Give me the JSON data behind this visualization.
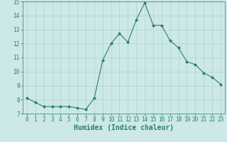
{
  "x": [
    0,
    1,
    2,
    3,
    4,
    5,
    6,
    7,
    8,
    9,
    10,
    11,
    12,
    13,
    14,
    15,
    16,
    17,
    18,
    19,
    20,
    21,
    22,
    23
  ],
  "y": [
    8.1,
    7.8,
    7.5,
    7.5,
    7.5,
    7.5,
    7.4,
    7.3,
    8.1,
    10.8,
    12.0,
    12.7,
    12.1,
    13.7,
    14.9,
    13.3,
    13.3,
    12.2,
    11.7,
    10.7,
    10.5,
    9.9,
    9.6,
    9.1
  ],
  "line_color": "#2e7d6e",
  "marker": "D",
  "marker_size": 2.0,
  "background_color": "#cce8e8",
  "grid_color_major": "#aacccc",
  "grid_color_minor": "#aacccc",
  "xlabel": "Humidex (Indice chaleur)",
  "xlim": [
    -0.5,
    23.5
  ],
  "ylim": [
    7,
    15
  ],
  "yticks": [
    7,
    8,
    9,
    10,
    11,
    12,
    13,
    14,
    15
  ],
  "xticks": [
    0,
    1,
    2,
    3,
    4,
    5,
    6,
    7,
    8,
    9,
    10,
    11,
    12,
    13,
    14,
    15,
    16,
    17,
    18,
    19,
    20,
    21,
    22,
    23
  ],
  "tick_color": "#2e7d6e",
  "label_color": "#2e7d6e",
  "font_size": 5.5,
  "xlabel_fontsize": 7.0,
  "linewidth": 0.8
}
